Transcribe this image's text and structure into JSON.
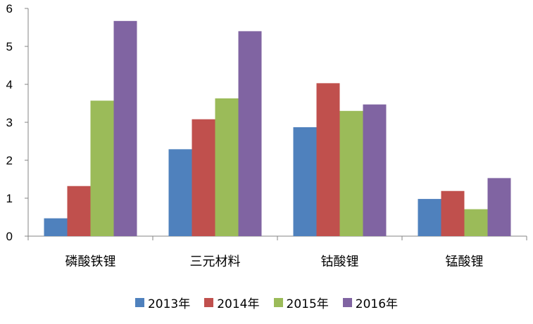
{
  "chart_data": {
    "type": "bar",
    "title": "",
    "xlabel": "",
    "ylabel": "",
    "ylim": [
      0,
      6
    ],
    "yticks": [
      "0",
      "1",
      "2",
      "3",
      "4",
      "5",
      "6"
    ],
    "grid": false,
    "legend_position": "bottom",
    "categories": [
      "磷酸铁锂",
      "三元材料",
      "钴酸锂",
      "锰酸锂"
    ],
    "series": [
      {
        "name": "2013年",
        "color": "#4f81bd",
        "values": [
          0.47,
          2.29,
          2.87,
          0.98
        ]
      },
      {
        "name": "2014年",
        "color": "#c0504d",
        "values": [
          1.32,
          3.08,
          4.03,
          1.19
        ]
      },
      {
        "name": "2015年",
        "color": "#9bbb59",
        "values": [
          3.57,
          3.63,
          3.3,
          0.71
        ]
      },
      {
        "name": "2016年",
        "color": "#8064a2",
        "values": [
          5.67,
          5.4,
          3.47,
          1.53
        ]
      }
    ]
  }
}
